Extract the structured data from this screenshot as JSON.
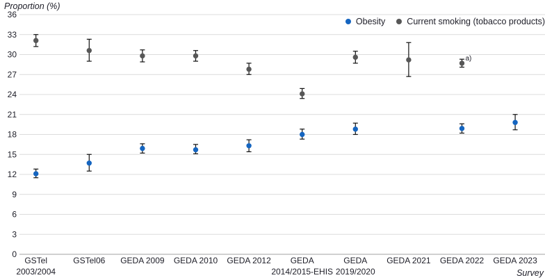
{
  "chart_data": {
    "type": "scatter",
    "ylabel": "Proportion (%)",
    "xlabel": "Survey",
    "ylim": [
      0,
      36
    ],
    "ytick_step": 3,
    "grid": true,
    "legend_position": "top-right",
    "error_bars": true,
    "categories": [
      [
        "GSTel",
        "2003/2004"
      ],
      [
        "GSTel06"
      ],
      [
        "GEDA 2009"
      ],
      [
        "GEDA 2010"
      ],
      [
        "GEDA 2012"
      ],
      [
        "GEDA",
        "2014/2015-EHIS"
      ],
      [
        "GEDA",
        "2019/2020"
      ],
      [
        "GEDA 2021"
      ],
      [
        "GEDA 2022"
      ],
      [
        "GEDA 2023"
      ]
    ],
    "series": [
      {
        "name": "Obesity",
        "color": "#1565c0",
        "values": [
          12.1,
          13.7,
          15.9,
          15.7,
          16.3,
          18.0,
          18.8,
          null,
          18.9,
          19.8
        ],
        "ci_low": [
          11.5,
          12.5,
          15.2,
          15.1,
          15.4,
          17.3,
          18.0,
          null,
          18.2,
          18.7
        ],
        "ci_high": [
          12.8,
          15.0,
          16.6,
          16.5,
          17.2,
          18.8,
          19.7,
          null,
          19.6,
          21.0
        ]
      },
      {
        "name": "Current smoking (tobacco products)",
        "color": "#575757",
        "values": [
          32.1,
          30.6,
          29.8,
          29.8,
          27.8,
          24.1,
          29.6,
          29.2,
          28.7,
          null
        ],
        "ci_low": [
          31.2,
          29.0,
          28.9,
          29.0,
          27.0,
          23.4,
          28.7,
          26.7,
          28.1,
          null
        ],
        "ci_high": [
          33.0,
          32.3,
          30.7,
          30.6,
          28.7,
          24.9,
          30.5,
          31.8,
          29.3,
          null
        ],
        "annotations": [
          {
            "index": 8,
            "text": "a)"
          }
        ]
      }
    ],
    "colors": {
      "gridline": "#dcdcdc",
      "axis_line": "#a0a0a0",
      "error_bar": "#111111",
      "text": "#20202a"
    }
  }
}
